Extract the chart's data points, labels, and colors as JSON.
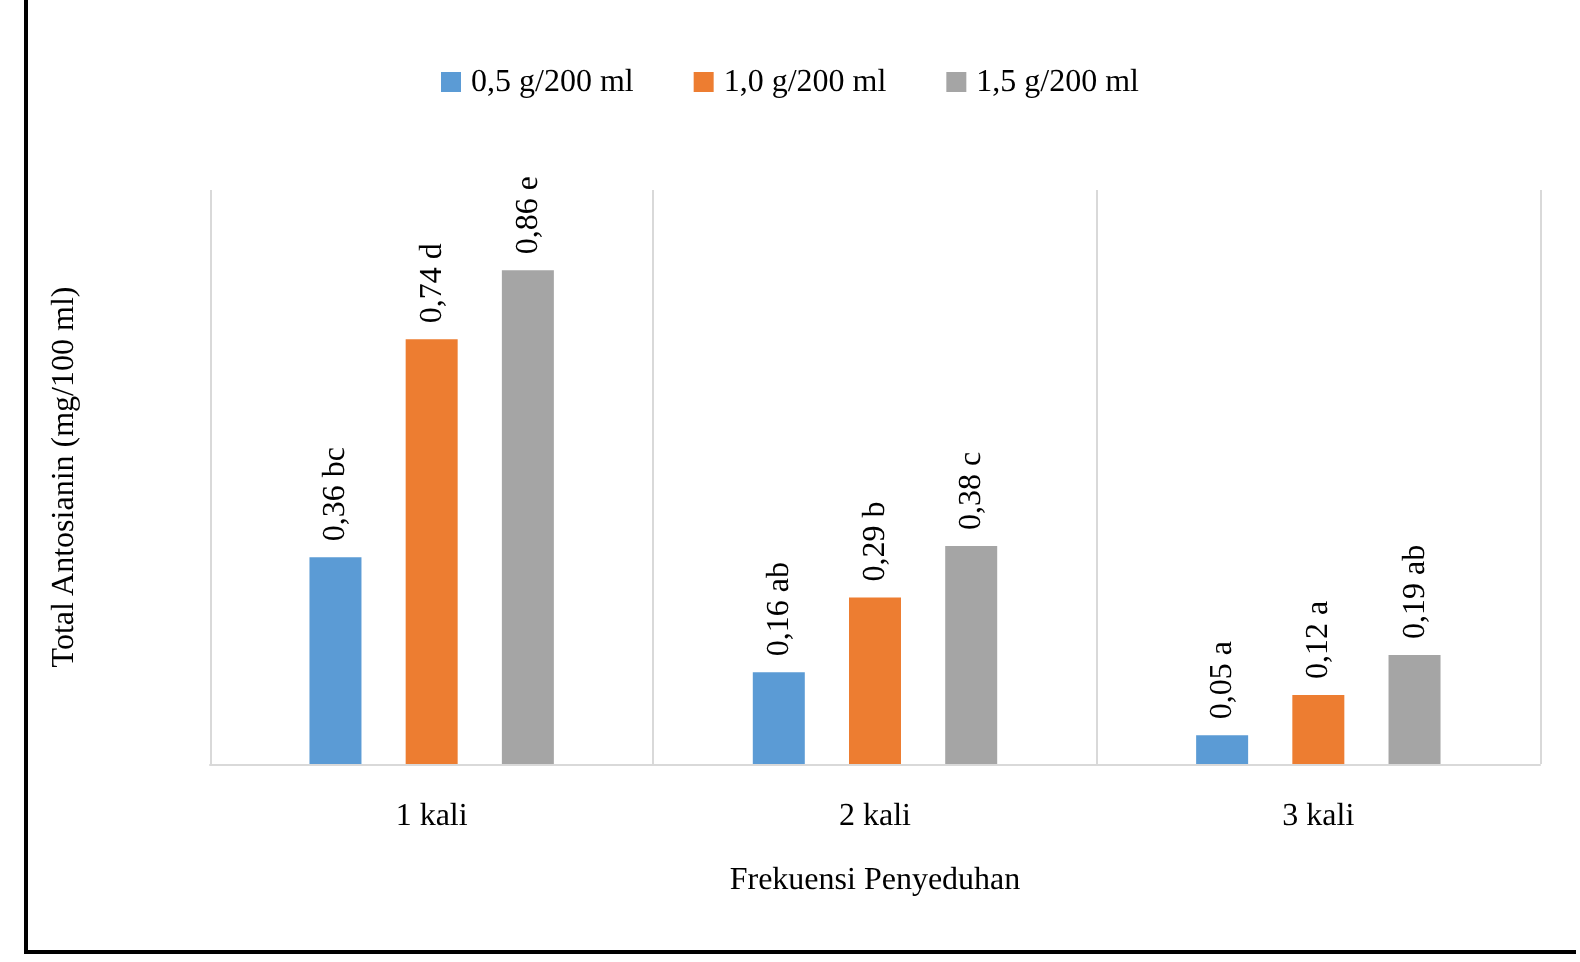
{
  "chart_data": {
    "type": "bar",
    "xlabel": "Frekuensi Penyeduhan",
    "ylabel": "Total Antosianin (mg/100 ml)",
    "categories": [
      "1 kali",
      "2 kali",
      "3 kali"
    ],
    "series": [
      {
        "name": "0,5 g/200 ml",
        "color": "#5b9bd5",
        "values": [
          0.36,
          0.16,
          0.05
        ],
        "value_labels": [
          "0,36 bc",
          "0,16 ab",
          "0,05 a"
        ]
      },
      {
        "name": "1,0 g/200 ml",
        "color": "#ed7d31",
        "values": [
          0.74,
          0.29,
          0.12
        ],
        "value_labels": [
          "0,74 d",
          "0,29 b",
          "0,12 a"
        ]
      },
      {
        "name": "1,5 g/200 ml",
        "color": "#a5a5a5",
        "values": [
          0.86,
          0.38,
          0.19
        ],
        "value_labels": [
          "0,86 e",
          "0,38 c",
          "0,19 ab"
        ]
      }
    ],
    "legend": "top",
    "grid": "x"
  }
}
